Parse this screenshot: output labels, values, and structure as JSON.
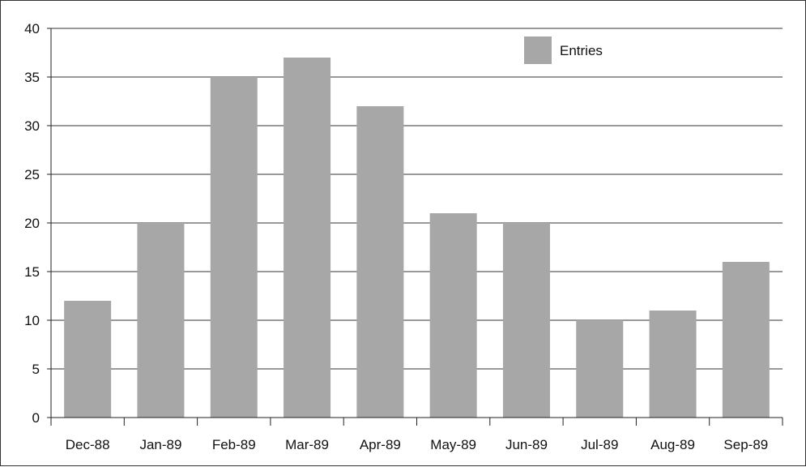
{
  "chart_data": {
    "type": "bar",
    "categories": [
      "Dec-88",
      "Jan-89",
      "Feb-89",
      "Mar-89",
      "Apr-89",
      "May-89",
      "Jun-89",
      "Jul-89",
      "Aug-89",
      "Sep-89"
    ],
    "series": [
      {
        "name": "Entries",
        "values": [
          12,
          20,
          35,
          37,
          32,
          21,
          20,
          10,
          11,
          16
        ]
      }
    ],
    "title": "",
    "xlabel": "",
    "ylabel": "",
    "ylim": [
      0,
      40
    ],
    "yticks": [
      "0",
      "5",
      "10",
      "15",
      "20",
      "25",
      "30",
      "35",
      "40"
    ],
    "grid": "horizontal",
    "legend_position": "top-right",
    "colors": {
      "bar": "#a7a7a7",
      "axis": "#222222",
      "grid": "#333333"
    }
  }
}
